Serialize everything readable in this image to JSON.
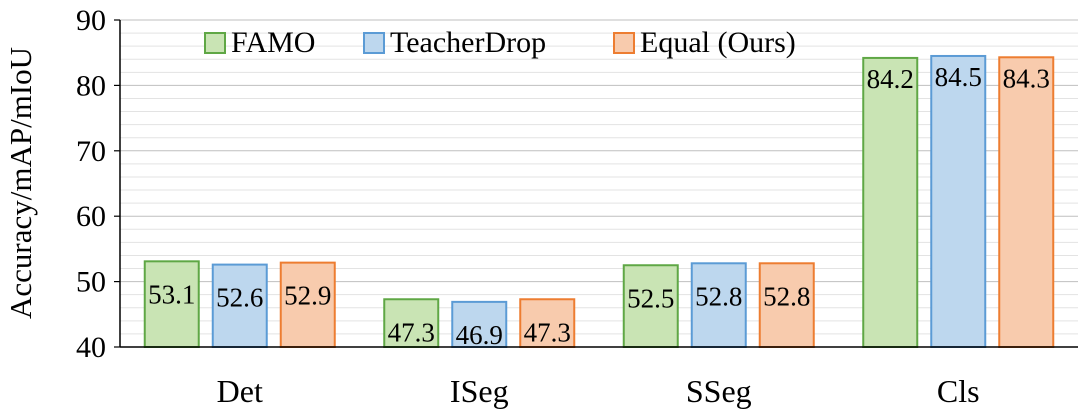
{
  "chart_data": {
    "type": "bar",
    "categories": [
      "Det",
      "ISeg",
      "SSeg",
      "Cls"
    ],
    "series": [
      {
        "name": "FAMO",
        "values": [
          53.1,
          47.3,
          52.5,
          84.2
        ],
        "fill": "#c9e4b4",
        "stroke": "#5fa745"
      },
      {
        "name": "TeacherDrop",
        "values": [
          52.6,
          46.9,
          52.8,
          84.5
        ],
        "fill": "#bdd7ee",
        "stroke": "#5b9bd5"
      },
      {
        "name": "Equal (Ours)",
        "values": [
          52.9,
          47.3,
          52.8,
          84.3
        ],
        "fill": "#f8cbad",
        "stroke": "#ed7d31"
      }
    ],
    "data_labels": [
      [
        "53.1",
        "52.6",
        "52.9"
      ],
      [
        "47.3",
        "46.9",
        "47.3"
      ],
      [
        "52.5",
        "52.8",
        "52.8"
      ],
      [
        "84.2",
        "84.5",
        "84.3"
      ]
    ],
    "ylabel": "Accuracy/mAP/mIoU",
    "xlabel": "",
    "ylim": [
      40,
      90
    ],
    "yticks": [
      40,
      50,
      60,
      70,
      80,
      90
    ],
    "grid": true,
    "legend_placement": "top-left"
  }
}
